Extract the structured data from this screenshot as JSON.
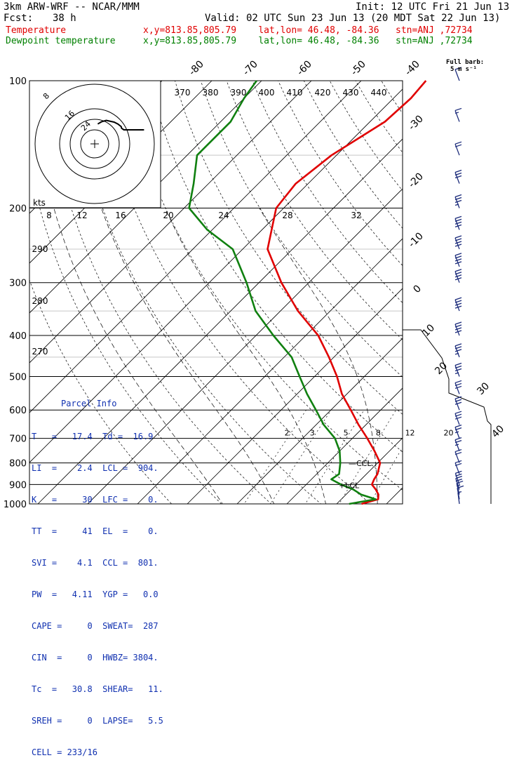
{
  "header": {
    "title": "3km ARW-WRF -- NCAR/MMM",
    "init": "Init: 12 UTC Fri 21 Jun 13",
    "fcst_label": "Fcst:",
    "fcst_value": "38 h",
    "valid": "Valid: 02 UTC Sun 23 Jun 13 (20 MDT Sat 22 Jun 13)",
    "temp_label": "Temperature",
    "temp_info": "x,y=813.85,805.79    lat,lon= 46.48, -84.36   stn=ANJ ,72734",
    "dew_label": "Dewpoint temperature",
    "dew_info": "x,y=813.85,805.79    lat,lon= 46.48, -84.36   stn=ANJ ,72734",
    "barb_legend": [
      "Full barb:",
      "5 m s⁻¹"
    ]
  },
  "colors": {
    "temperature": "#e00000",
    "dewpoint": "#108010",
    "wind": "#1a2a7a",
    "parcel_text": "#1030b0",
    "grid": "#000000"
  },
  "parcel_info": {
    "title": "Parcel Info",
    "rows": [
      "T   =   17.4  Td =  16.9",
      "LI  =    2.4  LCL =  904.",
      "K   =     30  LFC =    0.",
      "TT  =     41  EL  =    0.",
      "SVI =    4.1  CCL =  801.",
      "PW  =   4.11  YGP =   0.0",
      "CAPE =     0  SWEAT=  287",
      "CIN  =     0  HWBZ= 3804.",
      "Tc  =   30.8  SHEAR=   11.",
      "SREH =     0  LAPSE=   5.5",
      "CELL = 233/16"
    ]
  },
  "chart_data": {
    "type": "line",
    "subtype": "skew-T log-p",
    "y_axis": {
      "label": "",
      "scale": "log",
      "ticks": [
        100,
        200,
        300,
        400,
        500,
        600,
        700,
        800,
        900,
        1000
      ],
      "range": [
        1000,
        100
      ]
    },
    "temperature_labels": [
      "-80",
      "-70",
      "-60",
      "-50",
      "-40",
      "-30",
      "-20",
      "-10",
      "0",
      "10",
      "20",
      "30",
      "40"
    ],
    "theta_labels": [
      "370",
      "380",
      "390",
      "400",
      "410",
      "420",
      "430",
      "440"
    ],
    "theta_labels_left": [
      "290",
      "280",
      "270"
    ],
    "mixing_ratio_labels": [
      "2",
      "3",
      "5",
      "8",
      "12",
      "20"
    ],
    "hodograph": {
      "rings": [
        "8",
        "16",
        "24",
        "32"
      ],
      "unit_label": "kts",
      "x_ticks": [
        "8",
        "12",
        "16",
        "20",
        "24",
        "28",
        "32"
      ]
    },
    "markers": [
      "LCL",
      "CCL"
    ],
    "series": [
      {
        "name": "Temperature",
        "color": "#e00000",
        "points": [
          {
            "p": 1000,
            "t": 15.0
          },
          {
            "p": 975,
            "t": 17.4
          },
          {
            "p": 950,
            "t": 16.5
          },
          {
            "p": 925,
            "t": 15.0
          },
          {
            "p": 900,
            "t": 13.2
          },
          {
            "p": 875,
            "t": 12.6
          },
          {
            "p": 850,
            "t": 12.2
          },
          {
            "p": 800,
            "t": 10.5
          },
          {
            "p": 750,
            "t": 7.0
          },
          {
            "p": 700,
            "t": 3.0
          },
          {
            "p": 650,
            "t": -1.5
          },
          {
            "p": 600,
            "t": -6.0
          },
          {
            "p": 550,
            "t": -11.0
          },
          {
            "p": 500,
            "t": -15.5
          },
          {
            "p": 450,
            "t": -21.0
          },
          {
            "p": 400,
            "t": -27.5
          },
          {
            "p": 350,
            "t": -36.5
          },
          {
            "p": 300,
            "t": -45.5
          },
          {
            "p": 250,
            "t": -55.0
          },
          {
            "p": 200,
            "t": -61.5
          },
          {
            "p": 175,
            "t": -62.5
          },
          {
            "p": 150,
            "t": -61.0
          },
          {
            "p": 125,
            "t": -57.0
          },
          {
            "p": 110,
            "t": -56.5
          },
          {
            "p": 100,
            "t": -57.0
          }
        ]
      },
      {
        "name": "Dewpoint temperature",
        "color": "#108010",
        "points": [
          {
            "p": 1000,
            "t": 12.5
          },
          {
            "p": 975,
            "t": 16.9
          },
          {
            "p": 950,
            "t": 13.0
          },
          {
            "p": 925,
            "t": 10.5
          },
          {
            "p": 900,
            "t": 7.0
          },
          {
            "p": 875,
            "t": 4.0
          },
          {
            "p": 850,
            "t": 4.5
          },
          {
            "p": 800,
            "t": 2.5
          },
          {
            "p": 750,
            "t": 0.0
          },
          {
            "p": 700,
            "t": -3.5
          },
          {
            "p": 650,
            "t": -8.5
          },
          {
            "p": 600,
            "t": -13.0
          },
          {
            "p": 550,
            "t": -18.0
          },
          {
            "p": 500,
            "t": -23.0
          },
          {
            "p": 450,
            "t": -28.5
          },
          {
            "p": 400,
            "t": -36.5
          },
          {
            "p": 350,
            "t": -45.0
          },
          {
            "p": 300,
            "t": -52.5
          },
          {
            "p": 250,
            "t": -62.0
          },
          {
            "p": 225,
            "t": -71.0
          },
          {
            "p": 200,
            "t": -79.0
          },
          {
            "p": 175,
            "t": -83.0
          },
          {
            "p": 150,
            "t": -88.0
          },
          {
            "p": 125,
            "t": -88.0
          },
          {
            "p": 110,
            "t": -90.0
          },
          {
            "p": 100,
            "t": -91.0
          }
        ]
      }
    ],
    "wind": [
      {
        "p": 1000,
        "dir": 200,
        "spd": 4
      },
      {
        "p": 975,
        "dir": 210,
        "spd": 6
      },
      {
        "p": 950,
        "dir": 220,
        "spd": 8
      },
      {
        "p": 925,
        "dir": 240,
        "spd": 10
      },
      {
        "p": 900,
        "dir": 250,
        "spd": 11
      },
      {
        "p": 850,
        "dir": 260,
        "spd": 12
      },
      {
        "p": 800,
        "dir": 265,
        "spd": 12
      },
      {
        "p": 750,
        "dir": 270,
        "spd": 13
      },
      {
        "p": 700,
        "dir": 270,
        "spd": 14
      },
      {
        "p": 650,
        "dir": 270,
        "spd": 15
      },
      {
        "p": 600,
        "dir": 270,
        "spd": 16
      },
      {
        "p": 550,
        "dir": 270,
        "spd": 17
      },
      {
        "p": 500,
        "dir": 270,
        "spd": 18
      },
      {
        "p": 450,
        "dir": 270,
        "spd": 19
      },
      {
        "p": 400,
        "dir": 270,
        "spd": 20
      },
      {
        "p": 350,
        "dir": 270,
        "spd": 21
      },
      {
        "p": 300,
        "dir": 270,
        "spd": 22
      },
      {
        "p": 275,
        "dir": 270,
        "spd": 22
      },
      {
        "p": 250,
        "dir": 270,
        "spd": 21
      },
      {
        "p": 225,
        "dir": 270,
        "spd": 20
      },
      {
        "p": 200,
        "dir": 270,
        "spd": 18
      },
      {
        "p": 175,
        "dir": 270,
        "spd": 15
      },
      {
        "p": 150,
        "dir": 270,
        "spd": 12
      },
      {
        "p": 125,
        "dir": 270,
        "spd": 9
      },
      {
        "p": 100,
        "dir": 270,
        "spd": 6
      }
    ]
  }
}
